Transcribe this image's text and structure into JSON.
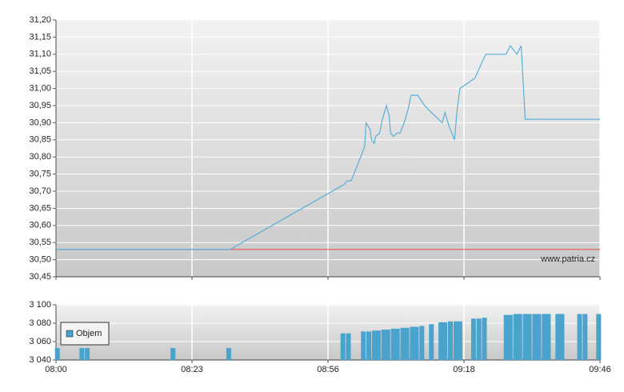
{
  "chart_data": [
    {
      "type": "line",
      "x": [
        0,
        1.28,
        2.12,
        2.14,
        2.17,
        2.27,
        2.28,
        2.31,
        2.32,
        2.34,
        2.35,
        2.38,
        2.4,
        2.43,
        2.45,
        2.46,
        2.48,
        2.51,
        2.52,
        2.53,
        2.56,
        2.59,
        2.61,
        2.66,
        2.71,
        2.76,
        2.84,
        2.86,
        2.89,
        2.93,
        2.95,
        2.97,
        3.08,
        3.12,
        3.16,
        3.31,
        3.34,
        3.39,
        3.42,
        3.45,
        4
      ],
      "values": [
        30.53,
        30.53,
        30.72,
        30.73,
        30.73,
        30.83,
        30.9,
        30.88,
        30.85,
        30.84,
        30.86,
        30.87,
        30.91,
        30.95,
        30.92,
        30.87,
        30.86,
        30.87,
        30.87,
        30.87,
        30.9,
        30.94,
        30.98,
        30.98,
        30.95,
        30.93,
        30.9,
        30.93,
        30.89,
        30.85,
        30.94,
        31.0,
        31.03,
        31.065,
        31.1,
        31.1,
        31.125,
        31.1,
        31.125,
        30.91,
        30.91
      ],
      "color": "#5aaed6",
      "reference": {
        "value": 30.53,
        "color": "#e05050"
      },
      "annotation": "www.patria.cz",
      "ylim": [
        30.45,
        31.2
      ],
      "yticks": [
        {
          "value": 30.45,
          "label": "30,45"
        },
        {
          "value": 30.5,
          "label": "30,50"
        },
        {
          "value": 30.55,
          "label": "30,55"
        },
        {
          "value": 30.6,
          "label": "30,60"
        },
        {
          "value": 30.65,
          "label": "30,65"
        },
        {
          "value": 30.7,
          "label": "30,70"
        },
        {
          "value": 30.75,
          "label": "30,75"
        },
        {
          "value": 30.8,
          "label": "30,80"
        },
        {
          "value": 30.85,
          "label": "30,85"
        },
        {
          "value": 30.9,
          "label": "30,90"
        },
        {
          "value": 30.95,
          "label": "30,95"
        },
        {
          "value": 31.0,
          "label": "31,00"
        },
        {
          "value": 31.05,
          "label": "31,05"
        },
        {
          "value": 31.1,
          "label": "31,10"
        },
        {
          "value": 31.15,
          "label": "31,15"
        },
        {
          "value": 31.2,
          "label": "31,20"
        }
      ],
      "xlim": [
        0,
        4
      ],
      "xticks": [
        0,
        1,
        2,
        3,
        4
      ],
      "grid": true
    },
    {
      "type": "bar",
      "series": [
        {
          "name": "Objem",
          "color": "#4aa3cc",
          "x": [
            0.01,
            0.19,
            0.23,
            0.86,
            1.27,
            2.11,
            2.15,
            2.26,
            2.3,
            2.34,
            2.37,
            2.41,
            2.44,
            2.48,
            2.51,
            2.55,
            2.58,
            2.62,
            2.65,
            2.69,
            2.76,
            2.83,
            2.86,
            2.9,
            2.94,
            2.97,
            3.07,
            3.11,
            3.15,
            3.31,
            3.34,
            3.38,
            3.41,
            3.45,
            3.48,
            3.52,
            3.55,
            3.59,
            3.62,
            3.69,
            3.72,
            3.85,
            3.89,
            3.99
          ],
          "values": [
            3053,
            3053,
            3053,
            3053,
            3053,
            3069,
            3069,
            3071,
            3071,
            3072,
            3072,
            3073,
            3073,
            3074,
            3074,
            3075,
            3075,
            3076,
            3076,
            3077,
            3079,
            3081,
            3081,
            3082,
            3082,
            3082,
            3085,
            3085,
            3086,
            3089,
            3089,
            3090,
            3090,
            3090,
            3090,
            3090,
            3090,
            3090,
            3090,
            3090,
            3090,
            3090,
            3090,
            3090
          ]
        }
      ],
      "ylim": [
        3040,
        3100
      ],
      "yticks": [
        {
          "value": 3040,
          "label": "3 040"
        },
        {
          "value": 3060,
          "label": "3 060"
        },
        {
          "value": 3080,
          "label": "3 080"
        },
        {
          "value": 3100,
          "label": "3 100"
        }
      ],
      "xlim": [
        0,
        4
      ],
      "xticks": [
        {
          "value": 0,
          "label": "08:00"
        },
        {
          "value": 1,
          "label": "08:23"
        },
        {
          "value": 2,
          "label": "08:56"
        },
        {
          "value": 3,
          "label": "09:18"
        },
        {
          "value": 4,
          "label": "09:46"
        }
      ],
      "legend": "upper left",
      "grid": true
    }
  ]
}
